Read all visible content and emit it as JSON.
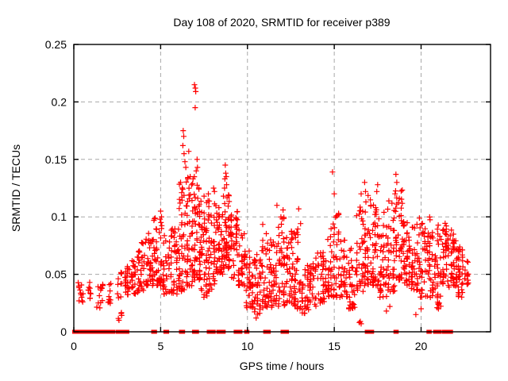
{
  "figure": {
    "background": "#ffffff"
  },
  "chart_data": {
    "type": "scatter",
    "title": "Day 108 of 2020, SRMTID for receiver p389",
    "xlabel": "GPS time / hours",
    "ylabel": "SRMTID / TECUs",
    "xlim": [
      0,
      24
    ],
    "ylim": [
      0,
      0.25
    ],
    "xticks": [
      0,
      5,
      10,
      15,
      20
    ],
    "xtick_labels": [
      "0",
      "5",
      "10",
      "15",
      "20"
    ],
    "yticks": [
      0,
      0.05,
      0.1,
      0.15,
      0.2,
      0.25
    ],
    "ytick_labels": [
      "0",
      "0.05",
      "0.1",
      "0.15",
      "0.2",
      "0.25"
    ],
    "grid": true,
    "grid_style": "dashed",
    "grid_color": "#a8a8a8",
    "legend": "none",
    "marker": {
      "shape": "plus",
      "color": "#ff0000",
      "size": 7
    },
    "series_name": "SRMTID",
    "notable_points": [
      [
        6.95,
        0.215
      ],
      [
        7.0,
        0.212
      ],
      [
        7.02,
        0.209
      ],
      [
        6.99,
        0.195
      ],
      [
        6.3,
        0.175
      ],
      [
        6.33,
        0.17
      ],
      [
        6.28,
        0.162
      ],
      [
        6.35,
        0.155
      ],
      [
        6.62,
        0.157
      ],
      [
        6.4,
        0.148
      ],
      [
        6.45,
        0.143
      ],
      [
        6.15,
        0.13
      ],
      [
        7.1,
        0.15
      ],
      [
        7.12,
        0.143
      ],
      [
        7.05,
        0.14
      ],
      [
        6.7,
        0.135
      ],
      [
        8.72,
        0.145
      ],
      [
        8.75,
        0.138
      ],
      [
        8.78,
        0.135
      ],
      [
        8.7,
        0.133
      ],
      [
        8.8,
        0.128
      ],
      [
        8.68,
        0.125
      ],
      [
        8.05,
        0.125
      ],
      [
        8.1,
        0.122
      ],
      [
        7.75,
        0.12
      ],
      [
        7.5,
        0.118
      ],
      [
        5.0,
        0.105
      ],
      [
        5.05,
        0.1
      ],
      [
        4.97,
        0.098
      ],
      [
        5.02,
        0.095
      ],
      [
        11.7,
        0.11
      ],
      [
        12.05,
        0.106
      ],
      [
        12.95,
        0.107
      ],
      [
        14.9,
        0.139
      ],
      [
        15.0,
        0.12
      ],
      [
        16.55,
        0.12
      ],
      [
        16.75,
        0.13
      ],
      [
        16.8,
        0.122
      ],
      [
        17.45,
        0.122
      ],
      [
        17.5,
        0.128
      ],
      [
        18.55,
        0.137
      ],
      [
        18.6,
        0.13
      ],
      [
        18.5,
        0.12
      ],
      [
        16.45,
        0.008
      ],
      [
        16.5,
        0.009
      ],
      [
        16.55,
        0.007
      ],
      [
        18.0,
        0.018
      ],
      [
        18.2,
        0.022
      ],
      [
        19.7,
        0.015
      ],
      [
        20.0,
        0.02
      ],
      [
        10.5,
        0.012
      ],
      [
        2.6,
        0.01
      ],
      [
        13.3,
        0.016
      ],
      [
        21.0,
        0.02
      ],
      [
        21.05,
        0.025
      ]
    ],
    "density_bins": [
      [
        0.2,
        0.55,
        12,
        0.025,
        0.044,
        1.0
      ],
      [
        0.8,
        1.0,
        10,
        0.028,
        0.046,
        1.0
      ],
      [
        1.3,
        1.7,
        14,
        0.02,
        0.042,
        1.0
      ],
      [
        1.95,
        2.15,
        10,
        0.024,
        0.046,
        1.0
      ],
      [
        2.45,
        2.8,
        14,
        0.01,
        0.052,
        1.0
      ],
      [
        2.9,
        3.3,
        22,
        0.03,
        0.058,
        1.2
      ],
      [
        3.3,
        3.7,
        26,
        0.033,
        0.068,
        1.3
      ],
      [
        3.7,
        4.1,
        30,
        0.035,
        0.08,
        1.5
      ],
      [
        4.1,
        4.6,
        38,
        0.04,
        0.088,
        1.5
      ],
      [
        4.6,
        5.1,
        40,
        0.04,
        0.1,
        1.6
      ],
      [
        5.1,
        5.55,
        30,
        0.032,
        0.085,
        1.4
      ],
      [
        5.55,
        6.0,
        36,
        0.03,
        0.09,
        1.4
      ],
      [
        6.0,
        6.45,
        48,
        0.035,
        0.13,
        1.8
      ],
      [
        6.45,
        6.9,
        52,
        0.04,
        0.135,
        1.8
      ],
      [
        6.9,
        7.3,
        55,
        0.045,
        0.135,
        1.7
      ],
      [
        7.3,
        7.7,
        42,
        0.03,
        0.115,
        1.6
      ],
      [
        7.7,
        8.15,
        45,
        0.035,
        0.118,
        1.6
      ],
      [
        8.15,
        8.6,
        48,
        0.05,
        0.11,
        1.3
      ],
      [
        8.6,
        9.0,
        48,
        0.055,
        0.12,
        1.3
      ],
      [
        9.0,
        9.45,
        40,
        0.045,
        0.105,
        1.4
      ],
      [
        9.45,
        9.9,
        36,
        0.04,
        0.092,
        1.4
      ],
      [
        9.9,
        10.35,
        34,
        0.02,
        0.075,
        1.3
      ],
      [
        10.35,
        10.8,
        36,
        0.015,
        0.07,
        1.2
      ],
      [
        10.8,
        11.3,
        40,
        0.02,
        0.095,
        1.6
      ],
      [
        11.3,
        11.75,
        36,
        0.02,
        0.08,
        1.4
      ],
      [
        11.75,
        12.2,
        40,
        0.022,
        0.1,
        1.6
      ],
      [
        12.2,
        12.65,
        36,
        0.025,
        0.09,
        1.5
      ],
      [
        12.65,
        13.1,
        38,
        0.02,
        0.1,
        1.6
      ],
      [
        13.1,
        13.55,
        30,
        0.015,
        0.062,
        1.2
      ],
      [
        13.55,
        14.0,
        30,
        0.022,
        0.065,
        1.2
      ],
      [
        14.0,
        14.45,
        32,
        0.025,
        0.07,
        1.2
      ],
      [
        14.45,
        14.9,
        34,
        0.03,
        0.1,
        1.6
      ],
      [
        14.9,
        15.35,
        36,
        0.03,
        0.105,
        1.6
      ],
      [
        15.35,
        15.8,
        32,
        0.03,
        0.08,
        1.4
      ],
      [
        15.8,
        16.25,
        32,
        0.02,
        0.075,
        1.3
      ],
      [
        16.25,
        16.7,
        36,
        0.035,
        0.11,
        1.6
      ],
      [
        16.7,
        17.15,
        40,
        0.04,
        0.12,
        1.6
      ],
      [
        17.15,
        17.6,
        42,
        0.04,
        0.115,
        1.5
      ],
      [
        17.6,
        18.05,
        38,
        0.03,
        0.105,
        1.5
      ],
      [
        18.05,
        18.5,
        40,
        0.035,
        0.115,
        1.5
      ],
      [
        18.5,
        18.95,
        42,
        0.045,
        0.125,
        1.5
      ],
      [
        18.95,
        19.4,
        38,
        0.04,
        0.1,
        1.4
      ],
      [
        19.4,
        19.85,
        36,
        0.035,
        0.095,
        1.4
      ],
      [
        19.85,
        20.3,
        36,
        0.03,
        0.1,
        1.5
      ],
      [
        20.3,
        20.75,
        36,
        0.03,
        0.1,
        1.5
      ],
      [
        20.75,
        21.2,
        34,
        0.02,
        0.095,
        1.5
      ],
      [
        21.2,
        21.65,
        40,
        0.035,
        0.095,
        1.3
      ],
      [
        21.65,
        22.1,
        42,
        0.04,
        0.09,
        1.2
      ],
      [
        22.1,
        22.45,
        30,
        0.03,
        0.075,
        1.2
      ],
      [
        22.45,
        22.75,
        14,
        0.035,
        0.062,
        1.2
      ]
    ],
    "baseline_marks": {
      "y": 0,
      "shape": "filled-square",
      "color": "#ff0000",
      "segments": [
        [
          0.0,
          0.14
        ],
        [
          0.25,
          0.4
        ],
        [
          0.5,
          0.62
        ],
        [
          0.7,
          0.85
        ],
        [
          0.9,
          1.05
        ],
        [
          1.15,
          1.3
        ],
        [
          1.4,
          1.55
        ],
        [
          1.65,
          1.8
        ],
        [
          1.9,
          2.05
        ],
        [
          2.15,
          2.3
        ],
        [
          2.5,
          2.62
        ],
        [
          2.7,
          3.1
        ],
        [
          4.55,
          4.7
        ],
        [
          5.25,
          5.4
        ],
        [
          6.15,
          6.32
        ],
        [
          6.9,
          7.12
        ],
        [
          7.75,
          7.88
        ],
        [
          7.95,
          8.08
        ],
        [
          8.3,
          8.65
        ],
        [
          9.3,
          9.42
        ],
        [
          9.5,
          9.62
        ],
        [
          9.9,
          10.02
        ],
        [
          11.0,
          11.25
        ],
        [
          12.0,
          12.3
        ],
        [
          16.85,
          17.2
        ],
        [
          18.5,
          18.62
        ],
        [
          20.4,
          20.52
        ],
        [
          20.78,
          21.1
        ],
        [
          21.3,
          21.75
        ]
      ]
    }
  }
}
